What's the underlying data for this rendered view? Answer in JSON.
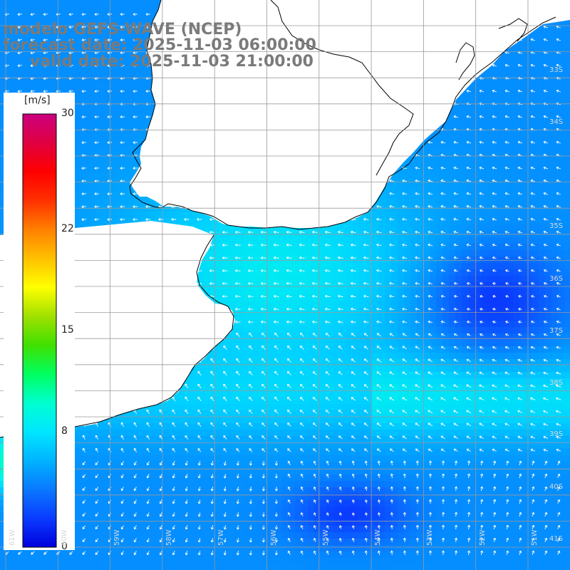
{
  "title": {
    "line1": "modelo GEFS-WAVE (NCEP)",
    "line2": "forecast date: 2025-11-03 06:00:00",
    "line3": "valid date: 2025-11-03 21:00:00"
  },
  "colorbar": {
    "unit": "[m/s]",
    "ticks": [
      "30",
      "22",
      "15",
      "8",
      "0"
    ],
    "tick_values": [
      30,
      22,
      15,
      8,
      0
    ],
    "range": [
      0,
      30
    ],
    "colors": [
      "#0000dd",
      "#0a3cff",
      "#0a78ff",
      "#00b4ff",
      "#00e6ff",
      "#00ffd0",
      "#00ff60",
      "#40e000",
      "#a0e000",
      "#ffff00",
      "#ffc000",
      "#ff8000",
      "#ff3000",
      "#ff0000",
      "#e00040",
      "#cc0080"
    ]
  },
  "lat_labels": [
    "33S",
    "34S",
    "35S",
    "36S",
    "37S",
    "38S",
    "39S",
    "40S",
    "41S"
  ],
  "lon_labels": [
    "61W",
    "60W",
    "59W",
    "58W",
    "57W",
    "56W",
    "55W",
    "54W",
    "53W",
    "52W",
    "51W",
    "50W"
  ],
  "map": {
    "land_color": "#ffffff",
    "grid_color": "#9a9a9a",
    "coast_color": "#000000",
    "arrow_color": "#ffffff"
  }
}
